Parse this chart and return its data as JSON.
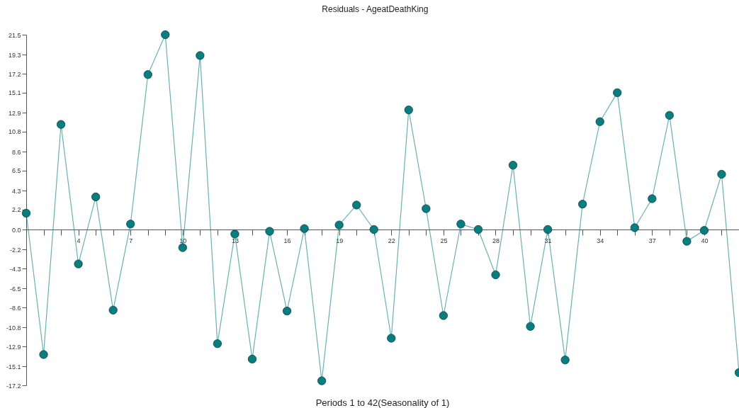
{
  "chart_data": {
    "type": "line",
    "title": "Residuals - AgeatDeathKing",
    "xlabel": "Periods 1 to 42(Seasonality of 1)",
    "x": [
      1,
      2,
      3,
      4,
      5,
      6,
      7,
      8,
      9,
      10,
      11,
      12,
      13,
      14,
      15,
      16,
      17,
      18,
      19,
      20,
      21,
      22,
      23,
      24,
      25,
      26,
      27,
      28,
      29,
      30,
      31,
      32,
      33,
      34,
      35,
      36,
      37,
      38,
      39,
      40,
      41,
      42
    ],
    "series": [
      {
        "color": "#008080",
        "values": [
          1.8,
          -13.8,
          11.6,
          -3.8,
          3.6,
          -8.9,
          0.6,
          17.1,
          21.5,
          -2.0,
          19.2,
          -12.6,
          -0.5,
          -14.3,
          -0.2,
          -9.0,
          0.1,
          -16.7,
          0.5,
          2.7,
          0,
          -12.0,
          13.2,
          2.3,
          -9.5,
          0.6,
          0,
          -5.0,
          7.1,
          -10.7,
          0,
          -14.4,
          2.8,
          11.9,
          15.1,
          0.2,
          3.4,
          12.6,
          -1.3,
          -0.1,
          6.1,
          -15.8
        ]
      }
    ],
    "xlim": [
      1,
      42
    ],
    "xticks": [
      {
        "value": 2,
        "label": null
      },
      {
        "value": 3,
        "label": null
      },
      4,
      {
        "value": 5,
        "label": null
      },
      {
        "value": 6,
        "label": null
      },
      7,
      {
        "value": 8,
        "label": null
      },
      {
        "value": 9,
        "label": null
      },
      10,
      {
        "value": 11,
        "label": null
      },
      {
        "value": 12,
        "label": null
      },
      13,
      {
        "value": 14,
        "label": null
      },
      {
        "value": 15,
        "label": null
      },
      16,
      {
        "value": 17,
        "label": null
      },
      {
        "value": 18,
        "label": null
      },
      19,
      {
        "value": 20,
        "label": null
      },
      {
        "value": 21,
        "label": null
      },
      22,
      {
        "value": 23,
        "label": null
      },
      {
        "value": 24,
        "label": null
      },
      25,
      {
        "value": 26,
        "label": null
      },
      {
        "value": 27,
        "label": null
      },
      28,
      {
        "value": 29,
        "label": null
      },
      {
        "value": 30,
        "label": null
      },
      31,
      {
        "value": 32,
        "label": null
      },
      {
        "value": 33,
        "label": null
      },
      34,
      {
        "value": 35,
        "label": null
      },
      {
        "value": 36,
        "label": null
      },
      37,
      {
        "value": 38,
        "label": null
      },
      {
        "value": 39,
        "label": null
      },
      40,
      {
        "value": 41,
        "label": null
      },
      {
        "value": 42,
        "label": null
      }
    ],
    "ylim": [
      -17.2,
      21.5
    ],
    "yticks": [
      -17.2,
      -15.1,
      -12.9,
      -10.8,
      -8.6,
      -6.5,
      -4.3,
      -2.2,
      {
        "value": 0,
        "label": "0.0"
      },
      2.2,
      4.3,
      6.5,
      8.6,
      10.8,
      12.9,
      15.1,
      17.2,
      19.3,
      21.5
    ],
    "grid": false,
    "marker": "circle",
    "line_style": "solid"
  }
}
